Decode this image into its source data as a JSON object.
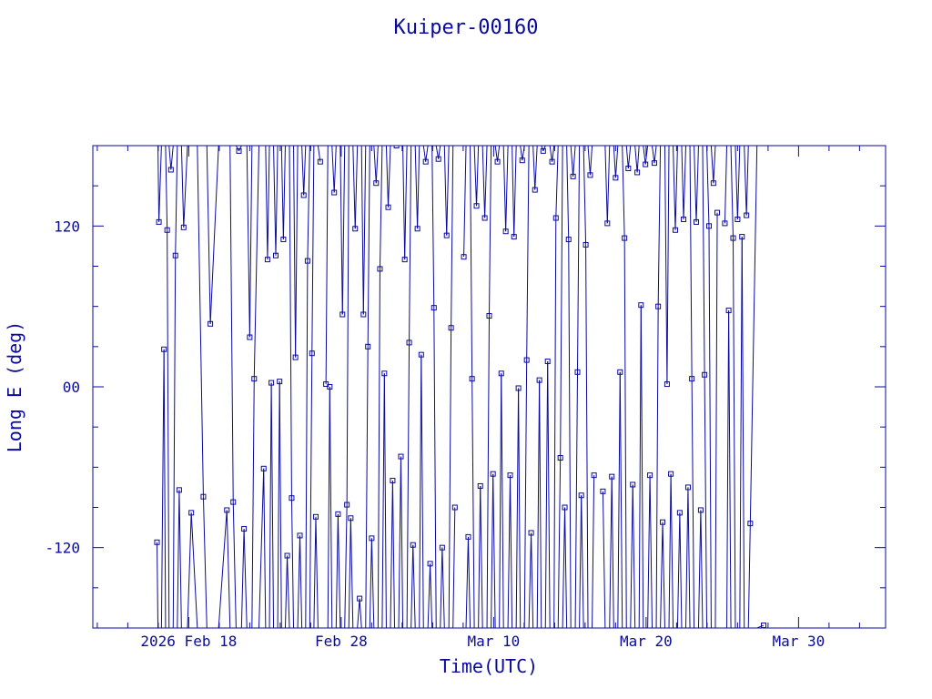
{
  "chart_data": {
    "type": "line",
    "title": "Kuiper-00160",
    "xlabel": "Time(UTC)",
    "ylabel": "Long E (deg)",
    "x_ticks": [
      {
        "value": "2026-02-18",
        "label": "2026 Feb 18"
      },
      {
        "value": "2026-02-28",
        "label": "Feb 28"
      },
      {
        "value": "2026-03-10",
        "label": "Mar 10"
      },
      {
        "value": "2026-03-20",
        "label": "Mar 20"
      },
      {
        "value": "2026-03-30",
        "label": "Mar 30"
      }
    ],
    "y_ticks": [
      {
        "value": -120,
        "label": "-120"
      },
      {
        "value": 0,
        "label": "00"
      },
      {
        "value": 120,
        "label": "120"
      }
    ],
    "xlim": [
      "2026-02-11T17:00",
      "2026-04-04T17:00"
    ],
    "ylim": [
      -180,
      180
    ],
    "grid": false,
    "line_color": "#0a0a9e",
    "series": [
      {
        "points": [
          [
            "2026-02-15T22:00",
            -116
          ],
          [
            "2026-02-16T01:00",
            123
          ],
          [
            "2026-02-16T09:00",
            28
          ],
          [
            "2026-02-16T14:00",
            117
          ],
          [
            "2026-02-16T20:00",
            162
          ],
          [
            "2026-02-17T03:00",
            98
          ],
          [
            "2026-02-17T09:00",
            -77
          ],
          [
            "2026-02-17T16:00",
            119
          ],
          [
            "2026-02-18T04:00",
            -94
          ],
          [
            "2026-02-18T23:00",
            -82
          ],
          [
            "2026-02-19T10:00",
            47
          ],
          [
            "2026-02-20T12:00",
            -92
          ],
          [
            "2026-02-20T22:00",
            -86
          ],
          [
            "2026-02-21T07:00",
            176
          ],
          [
            "2026-02-21T15:00",
            -106
          ],
          [
            "2026-02-22T00:00",
            37
          ],
          [
            "2026-02-22T07:00",
            6
          ],
          [
            "2026-02-22T22:00",
            -61
          ],
          [
            "2026-02-23T04:00",
            95
          ],
          [
            "2026-02-23T10:00",
            3
          ],
          [
            "2026-02-23T17:00",
            98
          ],
          [
            "2026-02-23T23:00",
            4
          ],
          [
            "2026-02-24T05:00",
            110
          ],
          [
            "2026-02-24T11:00",
            -126
          ],
          [
            "2026-02-24T18:00",
            -83
          ],
          [
            "2026-02-25T00:00",
            22
          ],
          [
            "2026-02-25T07:00",
            -111
          ],
          [
            "2026-02-25T13:00",
            143
          ],
          [
            "2026-02-25T19:00",
            94
          ],
          [
            "2026-02-26T02:00",
            25
          ],
          [
            "2026-02-26T08:00",
            -97
          ],
          [
            "2026-02-26T15:00",
            168
          ]
        ]
      },
      {
        "points": [
          [
            "2026-02-27T00:00",
            2
          ],
          [
            "2026-02-27T06:00",
            0
          ],
          [
            "2026-02-27T13:00",
            145
          ],
          [
            "2026-02-27T19:00",
            -95
          ],
          [
            "2026-02-28T02:00",
            54
          ],
          [
            "2026-02-28T09:00",
            -88
          ],
          [
            "2026-02-28T15:00",
            -98
          ],
          [
            "2026-02-28T22:00",
            118
          ],
          [
            "2026-03-01T05:00",
            -158
          ],
          [
            "2026-03-01T11:00",
            54
          ],
          [
            "2026-03-01T18:00",
            30
          ],
          [
            "2026-03-02T00:00",
            -113
          ],
          [
            "2026-03-02T07:00",
            152
          ],
          [
            "2026-03-02T13:00",
            88
          ],
          [
            "2026-03-02T20:00",
            10
          ],
          [
            "2026-03-03T02:00",
            134
          ],
          [
            "2026-03-03T09:00",
            -70
          ],
          [
            "2026-03-03T15:00",
            180
          ],
          [
            "2026-03-03T22:00",
            -52
          ],
          [
            "2026-03-04T04:00",
            95
          ],
          [
            "2026-03-04T11:00",
            33
          ],
          [
            "2026-03-04T17:00",
            -118
          ],
          [
            "2026-03-05T00:00",
            118
          ],
          [
            "2026-03-05T06:00",
            24
          ],
          [
            "2026-03-05T13:00",
            168
          ],
          [
            "2026-03-05T20:00",
            -132
          ],
          [
            "2026-03-06T02:00",
            59
          ],
          [
            "2026-03-06T09:00",
            170
          ],
          [
            "2026-03-06T15:00",
            -120
          ],
          [
            "2026-03-06T22:00",
            113
          ],
          [
            "2026-03-07T05:00",
            44
          ],
          [
            "2026-03-07T11:00",
            -90
          ]
        ]
      },
      {
        "points": [
          [
            "2026-03-08T01:00",
            97
          ],
          [
            "2026-03-08T08:00",
            -112
          ],
          [
            "2026-03-08T14:00",
            6
          ],
          [
            "2026-03-08T21:00",
            135
          ],
          [
            "2026-03-09T03:00",
            -74
          ],
          [
            "2026-03-09T10:00",
            126
          ],
          [
            "2026-03-09T17:00",
            53
          ],
          [
            "2026-03-09T23:00",
            -65
          ],
          [
            "2026-03-10T06:00",
            168
          ],
          [
            "2026-03-10T12:00",
            10
          ],
          [
            "2026-03-10T19:00",
            116
          ],
          [
            "2026-03-11T02:00",
            -66
          ],
          [
            "2026-03-11T08:00",
            112
          ],
          [
            "2026-03-11T15:00",
            -1
          ],
          [
            "2026-03-11T21:00",
            169
          ],
          [
            "2026-03-12T04:00",
            20
          ],
          [
            "2026-03-12T11:00",
            -109
          ],
          [
            "2026-03-12T17:00",
            147
          ],
          [
            "2026-03-13T00:00",
            5
          ],
          [
            "2026-03-13T06:00",
            176
          ],
          [
            "2026-03-13T13:00",
            19
          ],
          [
            "2026-03-13T20:00",
            168
          ],
          [
            "2026-03-14T02:00",
            126
          ],
          [
            "2026-03-14T09:00",
            -53
          ],
          [
            "2026-03-14T16:00",
            -90
          ],
          [
            "2026-03-14T22:00",
            110
          ],
          [
            "2026-03-15T05:00",
            157
          ],
          [
            "2026-03-15T12:00",
            11
          ],
          [
            "2026-03-15T18:00",
            -81
          ],
          [
            "2026-03-16T01:00",
            106
          ],
          [
            "2026-03-16T08:00",
            158
          ],
          [
            "2026-03-16T14:00",
            -66
          ]
        ]
      },
      {
        "points": [
          [
            "2026-03-17T04:00",
            -78
          ],
          [
            "2026-03-17T11:00",
            122
          ],
          [
            "2026-03-17T18:00",
            -67
          ],
          [
            "2026-03-18T00:00",
            156
          ],
          [
            "2026-03-18T07:00",
            11
          ],
          [
            "2026-03-18T14:00",
            111
          ],
          [
            "2026-03-18T20:00",
            163
          ],
          [
            "2026-03-19T03:00",
            -73
          ],
          [
            "2026-03-19T10:00",
            160
          ],
          [
            "2026-03-19T16:00",
            61
          ],
          [
            "2026-03-19T23:00",
            166
          ],
          [
            "2026-03-20T06:00",
            -66
          ],
          [
            "2026-03-20T13:00",
            167
          ],
          [
            "2026-03-20T19:00",
            60
          ],
          [
            "2026-03-21T02:00",
            -101
          ],
          [
            "2026-03-21T09:00",
            2
          ],
          [
            "2026-03-21T15:00",
            -65
          ],
          [
            "2026-03-21T22:00",
            117
          ],
          [
            "2026-03-22T05:00",
            -94
          ],
          [
            "2026-03-22T11:00",
            125
          ],
          [
            "2026-03-22T18:00",
            -75
          ],
          [
            "2026-03-23T00:00",
            6
          ],
          [
            "2026-03-23T07:00",
            123
          ],
          [
            "2026-03-23T14:00",
            -92
          ],
          [
            "2026-03-23T20:00",
            9
          ],
          [
            "2026-03-24T03:00",
            120
          ],
          [
            "2026-03-24T10:00",
            152
          ],
          [
            "2026-03-24T16:00",
            130
          ]
        ]
      },
      {
        "points": [
          [
            "2026-03-25T04:00",
            122
          ],
          [
            "2026-03-25T10:00",
            57
          ],
          [
            "2026-03-25T17:00",
            111
          ],
          [
            "2026-03-26T00:00",
            125
          ],
          [
            "2026-03-26T07:00",
            112
          ],
          [
            "2026-03-26T14:00",
            128
          ],
          [
            "2026-03-26T20:00",
            -102
          ],
          [
            "2026-03-27T17:00",
            -178
          ]
        ]
      }
    ]
  }
}
